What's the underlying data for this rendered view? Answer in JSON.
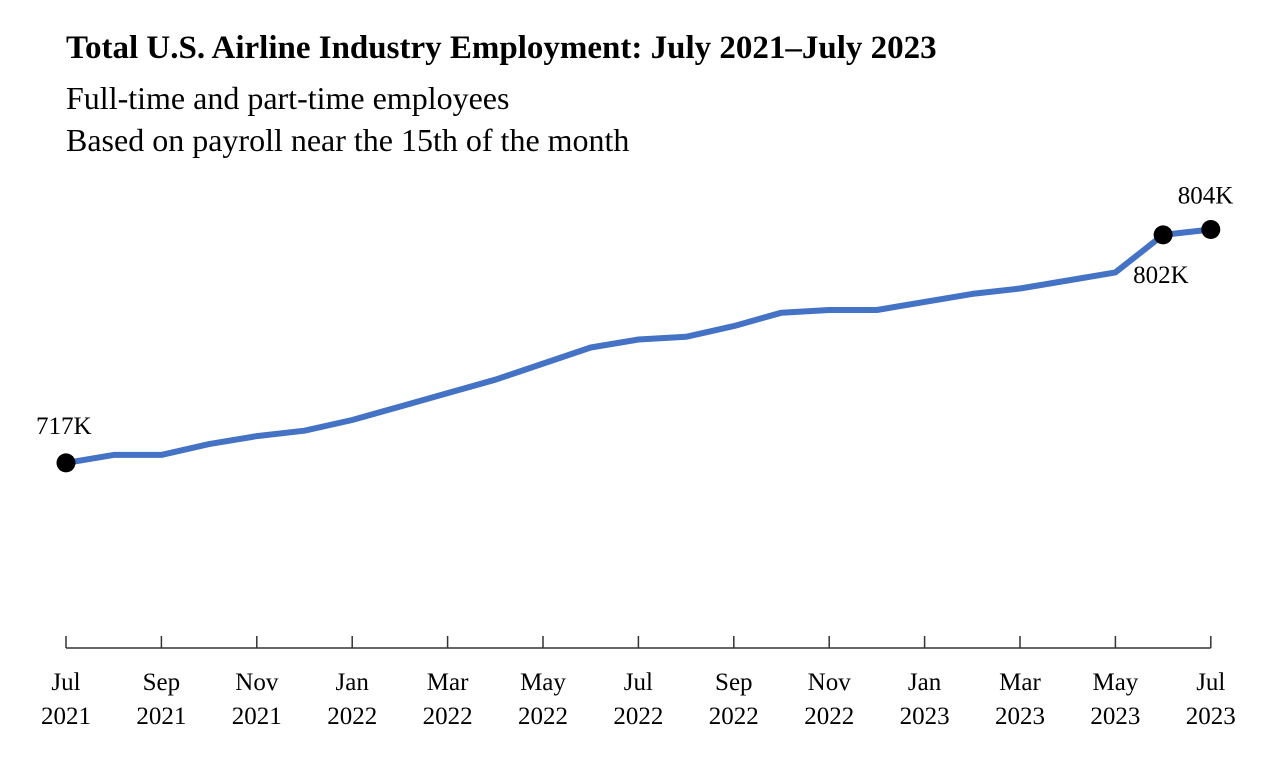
{
  "chart_data": {
    "type": "line",
    "title": "Total U.S. Airline Industry Employment: July 2021–July 2023",
    "subtitle_lines": [
      "Full-time and part-time employees",
      "Based on payroll near the 15th of the month"
    ],
    "x": [
      "2021-07",
      "2021-08",
      "2021-09",
      "2021-10",
      "2021-11",
      "2021-12",
      "2022-01",
      "2022-02",
      "2022-03",
      "2022-04",
      "2022-05",
      "2022-06",
      "2022-07",
      "2022-08",
      "2022-09",
      "2022-10",
      "2022-11",
      "2022-12",
      "2023-01",
      "2023-02",
      "2023-03",
      "2023-04",
      "2023-05",
      "2023-06",
      "2023-07"
    ],
    "series": [
      {
        "color": "#4472C4",
        "values": [
          717,
          720,
          720,
          724,
          727,
          729,
          733,
          738,
          743,
          748,
          754,
          760,
          763,
          764,
          768,
          773,
          774,
          774,
          777,
          780,
          782,
          785,
          788,
          802,
          804
        ]
      }
    ],
    "x_ticks": [
      {
        "month": "Jul",
        "year": "2021"
      },
      {
        "month": "Sep",
        "year": "2021"
      },
      {
        "month": "Nov",
        "year": "2021"
      },
      {
        "month": "Jan",
        "year": "2022"
      },
      {
        "month": "Mar",
        "year": "2022"
      },
      {
        "month": "May",
        "year": "2022"
      },
      {
        "month": "Jul",
        "year": "2022"
      },
      {
        "month": "Sep",
        "year": "2022"
      },
      {
        "month": "Nov",
        "year": "2022"
      },
      {
        "month": "Jan",
        "year": "2023"
      },
      {
        "month": "Mar",
        "year": "2023"
      },
      {
        "month": "May",
        "year": "2023"
      },
      {
        "month": "Jul",
        "year": "2023"
      }
    ],
    "annotations": [
      {
        "month": "2021-07",
        "label": "717K"
      },
      {
        "month": "2023-06",
        "label": "802K"
      },
      {
        "month": "2023-07",
        "label": "804K"
      }
    ],
    "marker_color": "#000000",
    "ylim": [
      648,
      815
    ],
    "grid": false,
    "legend": "none"
  }
}
